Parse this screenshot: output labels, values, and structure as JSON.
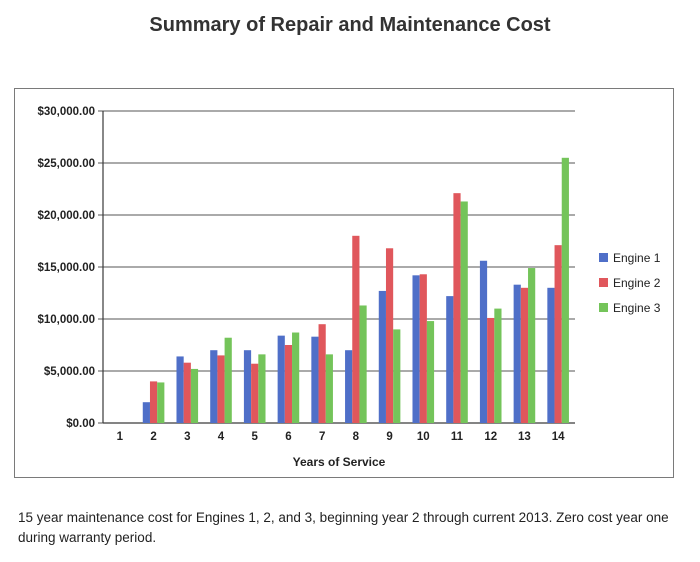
{
  "page": {
    "title": "Summary of Repair and Maintenance Cost",
    "caption": "15 year maintenance cost for Engines 1, 2, and 3, beginning year 2 through current 2013.  Zero cost year one during warranty period."
  },
  "chart_data": {
    "type": "bar",
    "title": "Summary of Repair and Maintenance Cost",
    "xlabel": "Years of Service",
    "ylabel": "",
    "categories": [
      "1",
      "2",
      "3",
      "4",
      "5",
      "6",
      "7",
      "8",
      "9",
      "10",
      "11",
      "12",
      "13",
      "14"
    ],
    "ylim": [
      0,
      30000
    ],
    "yticks": [
      0,
      5000,
      10000,
      15000,
      20000,
      25000,
      30000
    ],
    "ytick_labels": [
      "$0.00",
      "$5,000.00",
      "$10,000.00",
      "$15,000.00",
      "$20,000.00",
      "$25,000.00",
      "$30,000.00"
    ],
    "grid": true,
    "legend_position": "right",
    "series": [
      {
        "name": "Engine 1",
        "color": "#4f6fc8",
        "values": [
          0,
          2000,
          6400,
          7000,
          7000,
          8400,
          8300,
          7000,
          12700,
          14200,
          12200,
          15600,
          13300,
          13000
        ]
      },
      {
        "name": "Engine 2",
        "color": "#e0575c",
        "values": [
          0,
          4000,
          5800,
          6500,
          5700,
          7500,
          9500,
          18000,
          16800,
          14300,
          22100,
          10100,
          13000,
          17100
        ]
      },
      {
        "name": "Engine 3",
        "color": "#74c45a",
        "values": [
          0,
          3900,
          5200,
          8200,
          6600,
          8700,
          6600,
          11300,
          9000,
          9800,
          21300,
          11000,
          14900,
          25500
        ]
      }
    ]
  }
}
